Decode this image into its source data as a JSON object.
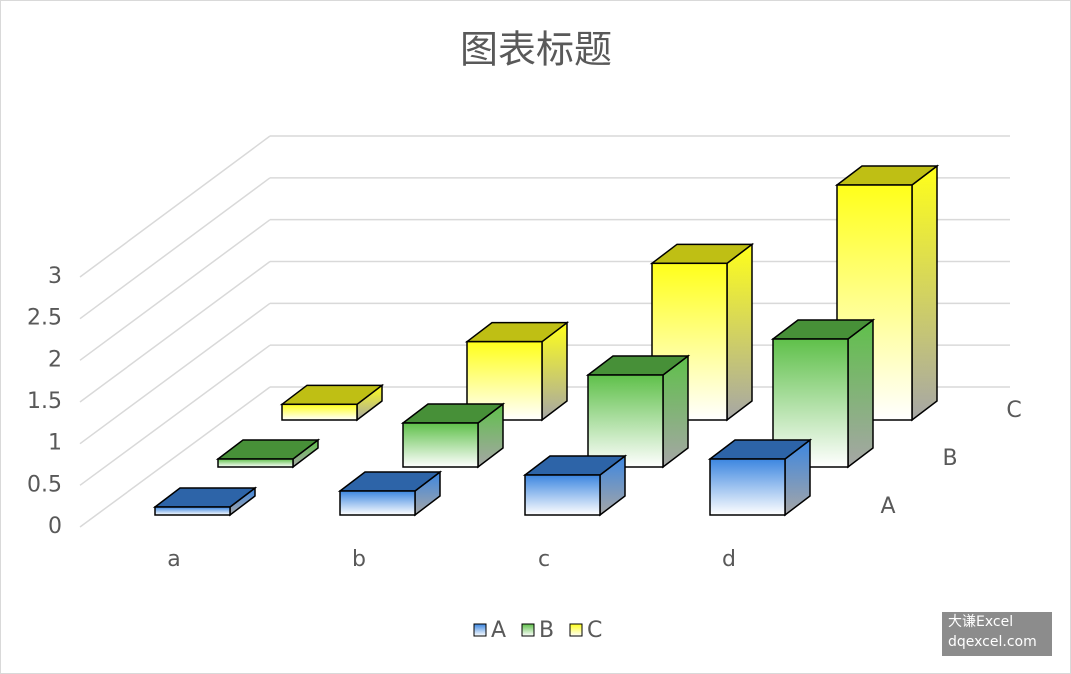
{
  "chart_data": {
    "type": "bar3d",
    "title": "图表标题",
    "categories": [
      "a",
      "b",
      "c",
      "d"
    ],
    "series": [
      {
        "name": "A",
        "color": "#3c86e0",
        "values": [
          0.1,
          0.3,
          0.5,
          0.7
        ]
      },
      {
        "name": "B",
        "color": "#5fc04a",
        "values": [
          0.1,
          0.55,
          1.15,
          1.6
        ]
      },
      {
        "name": "C",
        "color": "#ffff1a",
        "values": [
          0.2,
          1,
          2,
          3
        ]
      }
    ],
    "ylim": [
      0,
      3
    ],
    "yticks": [
      0,
      0.5,
      1,
      1.5,
      2,
      2.5,
      3
    ],
    "grid": true,
    "legend": "bottom",
    "watermark": [
      "大谦Excel",
      "dqexcel.com"
    ]
  }
}
